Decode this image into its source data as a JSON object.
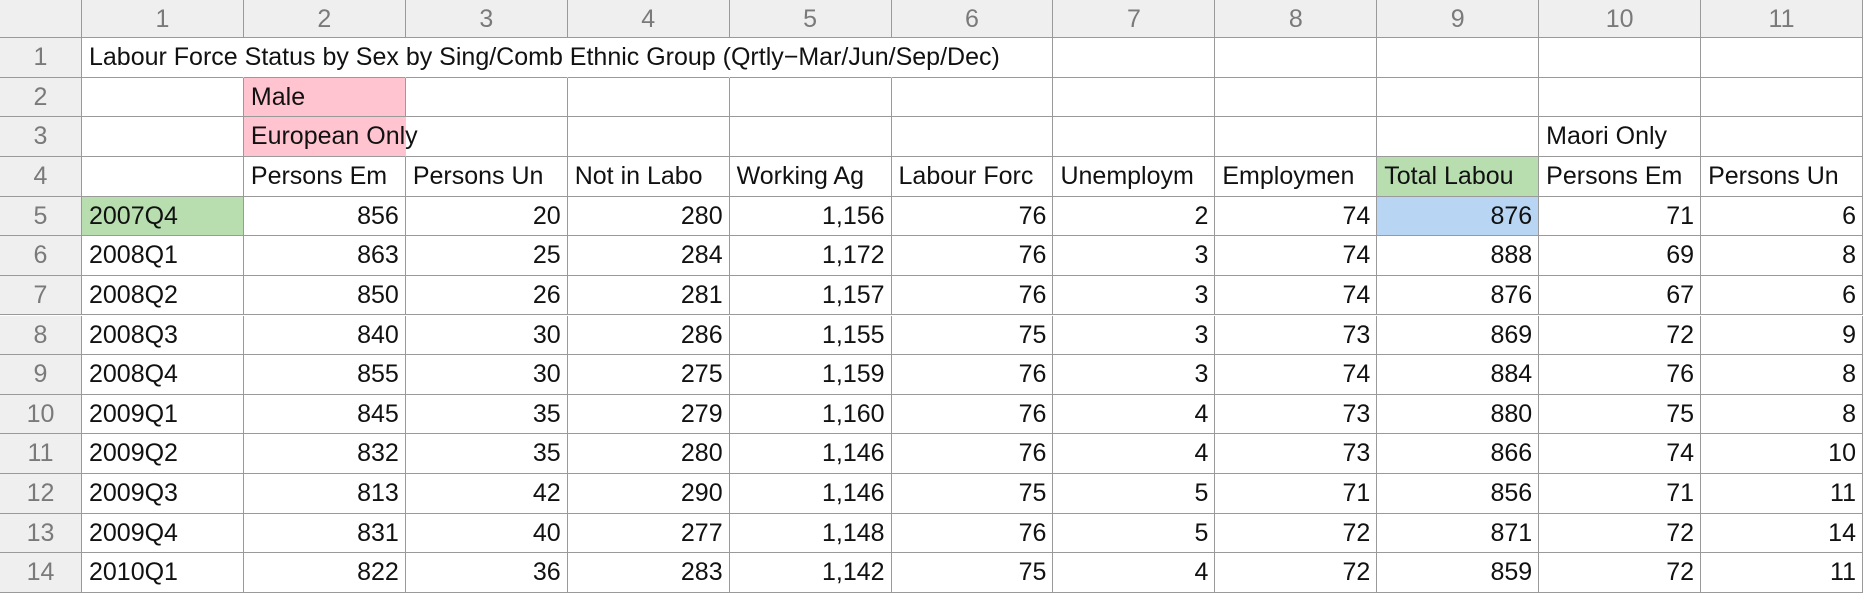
{
  "table": {
    "column_headers": [
      "1",
      "2",
      "3",
      "4",
      "5",
      "6",
      "7",
      "8",
      "9",
      "10",
      "11"
    ],
    "row_headers": [
      "1",
      "2",
      "3",
      "4",
      "5",
      "6",
      "7",
      "8",
      "9",
      "10",
      "11",
      "12",
      "13",
      "14"
    ],
    "rows": [
      [
        "Labour Force Status by Sex by Sing/Comb Ethnic Group (Qrtly−Mar/Jun/Sep/Dec)",
        null,
        null,
        null,
        null,
        null,
        null,
        null,
        null,
        null,
        null
      ],
      [
        null,
        "Male",
        null,
        null,
        null,
        null,
        null,
        null,
        null,
        null,
        null
      ],
      [
        null,
        "European Only",
        null,
        null,
        null,
        null,
        null,
        null,
        null,
        "Maori Only",
        null
      ],
      [
        null,
        "Persons Em",
        "Persons Un",
        "Not in Labo",
        "Working Ag",
        "Labour Forc",
        "Unemploym",
        "Employmen",
        "Total Labou",
        "Persons Em",
        "Persons Un"
      ],
      [
        "2007Q4",
        "856",
        "20",
        "280",
        "1,156",
        "76",
        "2",
        "74",
        "876",
        "71",
        "6"
      ],
      [
        "2008Q1",
        "863",
        "25",
        "284",
        "1,172",
        "76",
        "3",
        "74",
        "888",
        "69",
        "8"
      ],
      [
        "2008Q2",
        "850",
        "26",
        "281",
        "1,157",
        "76",
        "3",
        "74",
        "876",
        "67",
        "6"
      ],
      [
        "2008Q3",
        "840",
        "30",
        "286",
        "1,155",
        "75",
        "3",
        "73",
        "869",
        "72",
        "9"
      ],
      [
        "2008Q4",
        "855",
        "30",
        "275",
        "1,159",
        "76",
        "3",
        "74",
        "884",
        "76",
        "8"
      ],
      [
        "2009Q1",
        "845",
        "35",
        "279",
        "1,160",
        "76",
        "4",
        "73",
        "880",
        "75",
        "8"
      ],
      [
        "2009Q2",
        "832",
        "35",
        "280",
        "1,146",
        "76",
        "4",
        "73",
        "866",
        "74",
        "10"
      ],
      [
        "2009Q3",
        "813",
        "42",
        "290",
        "1,146",
        "75",
        "5",
        "71",
        "856",
        "71",
        "11"
      ],
      [
        "2009Q4",
        "831",
        "40",
        "277",
        "1,148",
        "76",
        "5",
        "72",
        "871",
        "72",
        "14"
      ],
      [
        "2010Q1",
        "822",
        "36",
        "283",
        "1,142",
        "75",
        "4",
        "72",
        "859",
        "72",
        "11"
      ]
    ]
  }
}
